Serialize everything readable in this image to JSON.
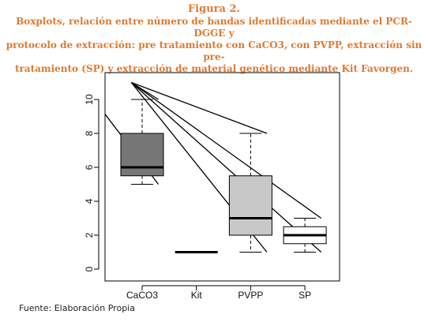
{
  "figure": {
    "label": "Figura 2.",
    "caption_lines": [
      "Boxplots, relación entre número de bandas identificadas mediante el PCR-DGGE y",
      "protocolo de extracción: pre tratamiento con CaCO3, con PVPP, extracción sin pre-",
      "tratamiento (SP) y extracción de material genético mediante Kit Favorgen."
    ]
  },
  "source": "Fuente: Elaboración Propia",
  "chart_data": {
    "type": "boxplot",
    "title": "",
    "xlabel": "",
    "ylabel": "",
    "ylim": [
      0,
      11
    ],
    "yticks": [
      0,
      2,
      4,
      6,
      8,
      10
    ],
    "grid": false,
    "categories": [
      "CaCO3",
      "Kit",
      "PVPP",
      "SP"
    ],
    "boxes": [
      {
        "category": "CaCO3",
        "min": 5,
        "q1": 5.5,
        "median": 6,
        "q3": 8,
        "max": 10,
        "fill": "#777777"
      },
      {
        "category": "Kit",
        "min": 1,
        "q1": 1,
        "median": 1,
        "q3": 1,
        "max": 1,
        "fill": "#777777"
      },
      {
        "category": "PVPP",
        "min": 1,
        "q1": 2,
        "median": 3,
        "q3": 5.5,
        "max": 8,
        "fill": "#c8c8c8"
      },
      {
        "category": "SP",
        "min": 1,
        "q1": 1.5,
        "median": 2,
        "q3": 2.5,
        "max": 3,
        "fill": "#ffffff"
      }
    ],
    "annotation_lines": [
      {
        "from": [
          0.3,
          9.2
        ],
        "to": [
          1.3,
          5.0
        ]
      },
      {
        "from": [
          0.8,
          11
        ],
        "to": [
          1.3,
          10.0
        ]
      },
      {
        "from": [
          0.8,
          11
        ],
        "to": [
          3.3,
          1.0
        ]
      },
      {
        "from": [
          0.8,
          11
        ],
        "to": [
          3.3,
          8.0
        ]
      },
      {
        "from": [
          0.8,
          11
        ],
        "to": [
          4.3,
          1.0
        ]
      },
      {
        "from": [
          0.8,
          11
        ],
        "to": [
          4.3,
          3.0
        ]
      }
    ]
  }
}
